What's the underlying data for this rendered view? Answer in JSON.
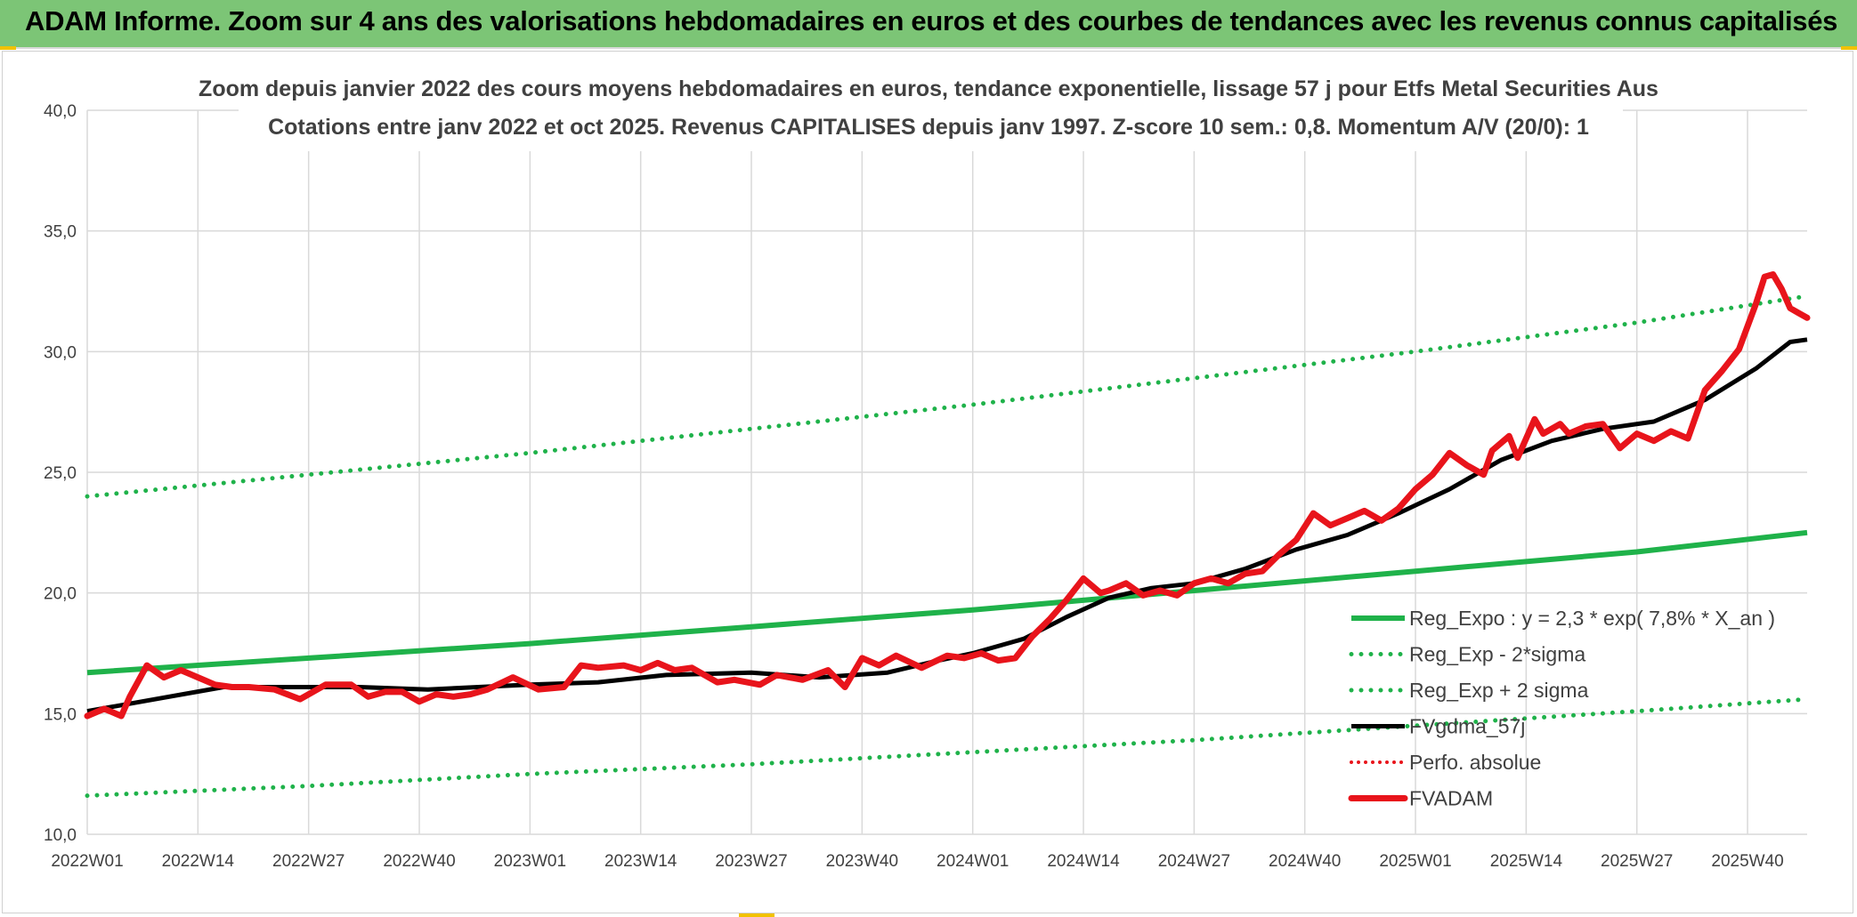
{
  "banner": {
    "title": "ADAM Informe. Zoom sur 4 ans des valorisations hebdomadaires en euros et des courbes de tendances avec les revenus connus capitalisés"
  },
  "colors": {
    "banner_bg": "#7cc576",
    "green": "#1fb24a",
    "black": "#000000",
    "red": "#e8141b",
    "red_dotted": "#e8141b",
    "grid": "#d9d9d9",
    "text": "#404040"
  },
  "chart_data": {
    "type": "line",
    "title": "Zoom depuis janvier 2022 des cours moyens hebdomadaires en euros, tendance exponentielle, lissage 57 j pour Etfs Metal Securities Aus",
    "subtitle": "Cotations entre janv 2022 et oct 2025. Revenus CAPITALISES depuis janv 1997. Z-score 10 sem.: 0,8. Momentum A/V (20/0): 1",
    "ylim": [
      10,
      40
    ],
    "yticks": [
      "10,0",
      "15,0",
      "20,0",
      "25,0",
      "30,0",
      "35,0",
      "40,0"
    ],
    "xticks": [
      "2022W01",
      "2022W14",
      "2022W27",
      "2022W40",
      "2023W01",
      "2023W14",
      "2023W27",
      "2023W40",
      "2024W01",
      "2024W14",
      "2024W27",
      "2024W40",
      "2025W01",
      "2025W14",
      "2025W27",
      "2025W40"
    ],
    "xlim_weeks": [
      0,
      202
    ],
    "grid": true,
    "legend_position": "bottom-right",
    "series": [
      {
        "name": "Reg_Expo : y = 2,3 * exp( 7,8% *  X_an )",
        "style": "solid-green",
        "x_weeks": [
          0,
          26,
          52,
          78,
          104,
          130,
          156,
          182,
          202
        ],
        "values": [
          16.7,
          17.3,
          17.9,
          18.6,
          19.3,
          20.1,
          20.9,
          21.7,
          22.5
        ]
      },
      {
        "name": "Reg_Exp - 2*sigma",
        "style": "dotted-green",
        "x_weeks": [
          0,
          26,
          52,
          78,
          104,
          130,
          156,
          182,
          202
        ],
        "values": [
          11.6,
          12.0,
          12.5,
          12.9,
          13.4,
          13.9,
          14.5,
          15.1,
          15.6
        ]
      },
      {
        "name": "Reg_Exp + 2 sigma",
        "style": "dotted-green",
        "x_weeks": [
          0,
          26,
          52,
          78,
          104,
          130,
          156,
          182,
          202
        ],
        "values": [
          24.0,
          24.9,
          25.8,
          26.8,
          27.8,
          28.9,
          30.0,
          31.2,
          32.3
        ]
      },
      {
        "name": "FVgdma_57j",
        "style": "solid-black",
        "x_weeks": [
          0,
          8,
          16,
          24,
          32,
          40,
          52,
          60,
          68,
          78,
          86,
          94,
          100,
          104,
          110,
          115,
          120,
          125,
          130,
          136,
          142,
          148,
          154,
          160,
          166,
          172,
          178,
          184,
          190,
          196,
          200,
          202
        ],
        "values": [
          15.1,
          15.6,
          16.1,
          16.1,
          16.1,
          16.0,
          16.2,
          16.3,
          16.6,
          16.7,
          16.5,
          16.7,
          17.2,
          17.5,
          18.1,
          19.0,
          19.8,
          20.2,
          20.4,
          21.0,
          21.8,
          22.4,
          23.3,
          24.3,
          25.5,
          26.3,
          26.8,
          27.1,
          28.0,
          29.3,
          30.4,
          30.5
        ]
      },
      {
        "name": "Perfo. absolue",
        "style": "dotted-red",
        "x_weeks": [],
        "values": []
      },
      {
        "name": "FVADAM",
        "style": "solid-red",
        "x_weeks": [
          0,
          2,
          4,
          5,
          7,
          9,
          11,
          13,
          15,
          17,
          19,
          22,
          25,
          28,
          31,
          33,
          35,
          37,
          39,
          41,
          43,
          45,
          47,
          50,
          53,
          56,
          58,
          60,
          63,
          65,
          67,
          69,
          71,
          74,
          76,
          79,
          81,
          84,
          87,
          89,
          91,
          93,
          95,
          98,
          101,
          103,
          105,
          107,
          109,
          111,
          113,
          115,
          117,
          119,
          120,
          122,
          124,
          126,
          128,
          130,
          132,
          134,
          136,
          138,
          140,
          142,
          144,
          146,
          148,
          150,
          152,
          154,
          156,
          158,
          160,
          162,
          164,
          165,
          167,
          168,
          170,
          171,
          173,
          174,
          176,
          178,
          180,
          182,
          184,
          186,
          188,
          190,
          192,
          194,
          196,
          197,
          198,
          199,
          200,
          201,
          202
        ],
        "values": [
          14.9,
          15.2,
          14.9,
          15.7,
          17.0,
          16.5,
          16.8,
          16.5,
          16.2,
          16.1,
          16.1,
          16.0,
          15.6,
          16.2,
          16.2,
          15.7,
          15.9,
          15.9,
          15.5,
          15.8,
          15.7,
          15.8,
          16.0,
          16.5,
          16.0,
          16.1,
          17.0,
          16.9,
          17.0,
          16.8,
          17.1,
          16.8,
          16.9,
          16.3,
          16.4,
          16.2,
          16.6,
          16.4,
          16.8,
          16.1,
          17.3,
          17.0,
          17.4,
          16.9,
          17.4,
          17.3,
          17.5,
          17.2,
          17.3,
          18.2,
          18.9,
          19.7,
          20.6,
          20.0,
          20.1,
          20.4,
          19.9,
          20.1,
          19.9,
          20.4,
          20.6,
          20.4,
          20.8,
          20.9,
          21.6,
          22.2,
          23.3,
          22.8,
          23.1,
          23.4,
          23.0,
          23.5,
          24.3,
          24.9,
          25.8,
          25.3,
          24.9,
          25.9,
          26.5,
          25.6,
          27.2,
          26.6,
          27.0,
          26.6,
          26.9,
          27.0,
          26.0,
          26.6,
          26.3,
          26.7,
          26.4,
          28.4,
          29.2,
          30.1,
          32.0,
          33.1,
          33.2,
          32.6,
          31.8,
          31.6,
          31.4
        ]
      }
    ]
  }
}
